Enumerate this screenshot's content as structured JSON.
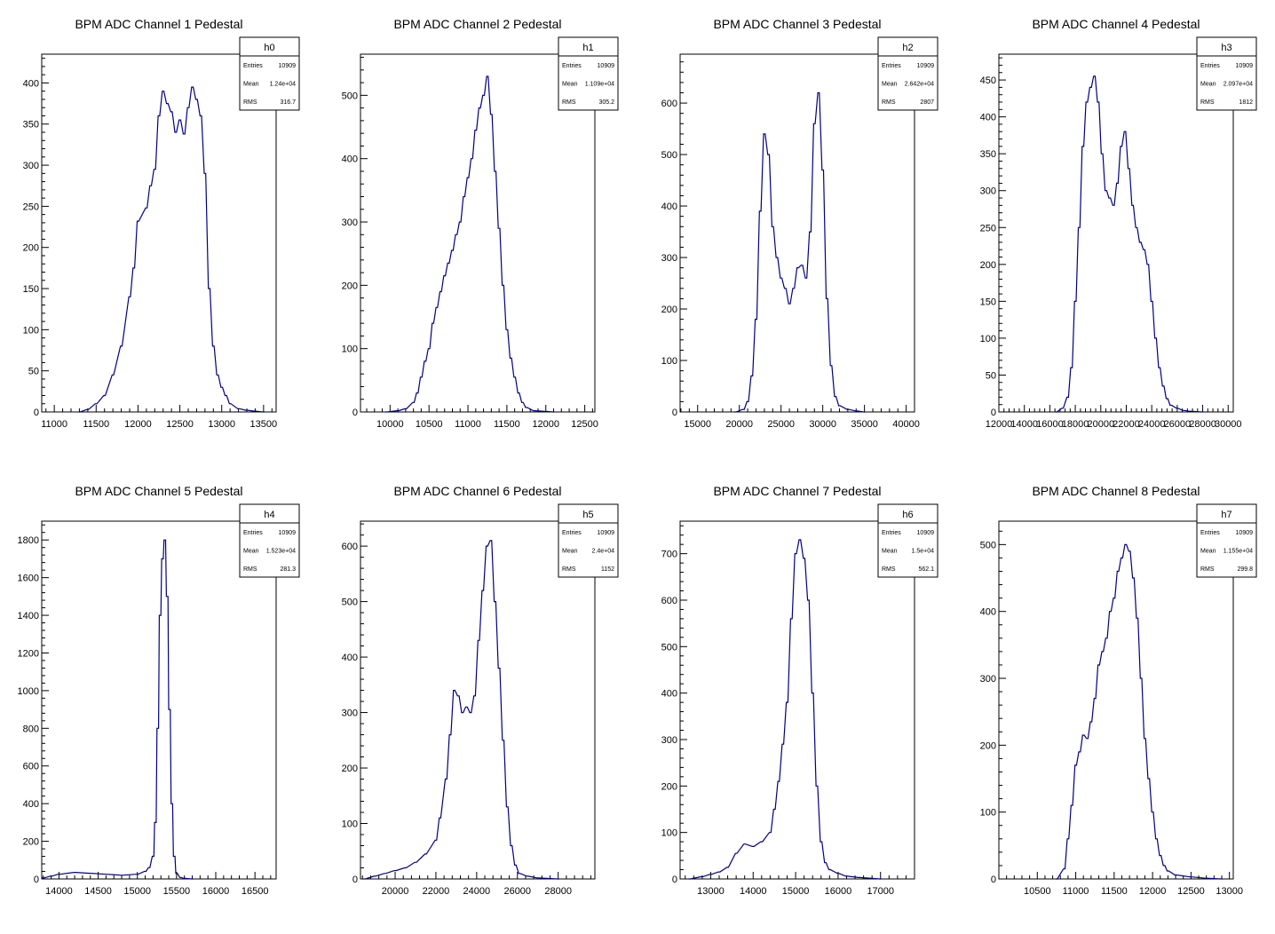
{
  "colors": {
    "histogram": "#000080",
    "frame": "#000000",
    "background": "#ffffff"
  },
  "chart_data": [
    {
      "type": "histogram",
      "title": "BPM ADC Channel 1 Pedestal",
      "stats": {
        "name": "h0",
        "entries": "10909",
        "mean": "1.24e+04",
        "rms": "316.7"
      },
      "xlim": [
        10850,
        13650
      ],
      "ylim": [
        0,
        435
      ],
      "xticks": [
        11000,
        11500,
        12000,
        12500,
        13000,
        13500
      ],
      "yticks": [
        0,
        50,
        100,
        150,
        200,
        250,
        300,
        350,
        400
      ],
      "points": [
        [
          11300,
          0
        ],
        [
          11400,
          3
        ],
        [
          11500,
          10
        ],
        [
          11600,
          20
        ],
        [
          11700,
          45
        ],
        [
          11800,
          80
        ],
        [
          11900,
          140
        ],
        [
          11950,
          175
        ],
        [
          12000,
          232
        ],
        [
          12100,
          248
        ],
        [
          12150,
          275
        ],
        [
          12200,
          295
        ],
        [
          12250,
          360
        ],
        [
          12300,
          390
        ],
        [
          12350,
          375
        ],
        [
          12400,
          365
        ],
        [
          12450,
          340
        ],
        [
          12500,
          355
        ],
        [
          12550,
          338
        ],
        [
          12600,
          370
        ],
        [
          12650,
          395
        ],
        [
          12700,
          380
        ],
        [
          12750,
          360
        ],
        [
          12800,
          290
        ],
        [
          12850,
          150
        ],
        [
          12900,
          80
        ],
        [
          12950,
          45
        ],
        [
          13000,
          30
        ],
        [
          13050,
          20
        ],
        [
          13100,
          10
        ],
        [
          13200,
          4
        ],
        [
          13300,
          2
        ],
        [
          13400,
          1
        ],
        [
          13500,
          0
        ]
      ]
    },
    {
      "type": "histogram",
      "title": "BPM ADC Channel 2 Pedestal",
      "stats": {
        "name": "h1",
        "entries": "10909",
        "mean": "1.109e+04",
        "rms": "305.2"
      },
      "xlim": [
        9620,
        12630
      ],
      "ylim": [
        0,
        565
      ],
      "xticks": [
        10000,
        10500,
        11000,
        11500,
        12000,
        12500
      ],
      "yticks": [
        0,
        100,
        200,
        300,
        400,
        500
      ],
      "points": [
        [
          9950,
          0
        ],
        [
          10100,
          2
        ],
        [
          10200,
          5
        ],
        [
          10300,
          15
        ],
        [
          10350,
          30
        ],
        [
          10400,
          55
        ],
        [
          10450,
          80
        ],
        [
          10500,
          100
        ],
        [
          10550,
          140
        ],
        [
          10600,
          165
        ],
        [
          10650,
          190
        ],
        [
          10700,
          215
        ],
        [
          10750,
          235
        ],
        [
          10800,
          255
        ],
        [
          10850,
          280
        ],
        [
          10900,
          300
        ],
        [
          10950,
          340
        ],
        [
          11000,
          370
        ],
        [
          11050,
          400
        ],
        [
          11100,
          445
        ],
        [
          11150,
          480
        ],
        [
          11200,
          500
        ],
        [
          11250,
          530
        ],
        [
          11300,
          470
        ],
        [
          11350,
          380
        ],
        [
          11400,
          290
        ],
        [
          11450,
          200
        ],
        [
          11500,
          130
        ],
        [
          11550,
          85
        ],
        [
          11600,
          55
        ],
        [
          11650,
          30
        ],
        [
          11700,
          15
        ],
        [
          11750,
          7
        ],
        [
          11850,
          2
        ],
        [
          12000,
          1
        ],
        [
          12100,
          0
        ]
      ]
    },
    {
      "type": "histogram",
      "title": "BPM ADC Channel 3 Pedestal",
      "stats": {
        "name": "h2",
        "entries": "10909",
        "mean": "2.642e+04",
        "rms": "2807"
      },
      "xlim": [
        12900,
        41000
      ],
      "ylim": [
        0,
        695
      ],
      "xticks": [
        15000,
        20000,
        25000,
        30000,
        35000,
        40000
      ],
      "yticks": [
        0,
        100,
        200,
        300,
        400,
        500,
        600
      ],
      "points": [
        [
          19500,
          0
        ],
        [
          20500,
          5
        ],
        [
          21000,
          20
        ],
        [
          21500,
          70
        ],
        [
          22000,
          180
        ],
        [
          22500,
          390
        ],
        [
          23000,
          540
        ],
        [
          23500,
          500
        ],
        [
          24000,
          360
        ],
        [
          24500,
          300
        ],
        [
          25000,
          260
        ],
        [
          25500,
          240
        ],
        [
          26000,
          210
        ],
        [
          26500,
          240
        ],
        [
          27000,
          280
        ],
        [
          27500,
          285
        ],
        [
          28000,
          260
        ],
        [
          28500,
          350
        ],
        [
          29000,
          560
        ],
        [
          29500,
          620
        ],
        [
          30000,
          470
        ],
        [
          30500,
          220
        ],
        [
          31000,
          90
        ],
        [
          31500,
          30
        ],
        [
          32000,
          12
        ],
        [
          33000,
          5
        ],
        [
          34000,
          2
        ],
        [
          35000,
          0
        ]
      ]
    },
    {
      "type": "histogram",
      "title": "BPM ADC Channel 4 Pedestal",
      "stats": {
        "name": "h3",
        "entries": "10909",
        "mean": "2.097e+04",
        "rms": "1812"
      },
      "xlim": [
        12000,
        30400
      ],
      "ylim": [
        0,
        485
      ],
      "xticks": [
        12000,
        14000,
        16000,
        18000,
        20000,
        22000,
        24000,
        26000,
        28000,
        30000
      ],
      "yticks": [
        0,
        50,
        100,
        150,
        200,
        250,
        300,
        350,
        400,
        450
      ],
      "points": [
        [
          16500,
          0
        ],
        [
          17000,
          5
        ],
        [
          17400,
          20
        ],
        [
          17700,
          60
        ],
        [
          18000,
          150
        ],
        [
          18300,
          250
        ],
        [
          18600,
          360
        ],
        [
          18900,
          420
        ],
        [
          19200,
          440
        ],
        [
          19500,
          455
        ],
        [
          19800,
          420
        ],
        [
          20100,
          350
        ],
        [
          20400,
          300
        ],
        [
          20700,
          290
        ],
        [
          21000,
          280
        ],
        [
          21300,
          310
        ],
        [
          21600,
          360
        ],
        [
          21900,
          380
        ],
        [
          22200,
          330
        ],
        [
          22500,
          280
        ],
        [
          22800,
          250
        ],
        [
          23100,
          230
        ],
        [
          23400,
          220
        ],
        [
          23700,
          200
        ],
        [
          24000,
          150
        ],
        [
          24300,
          100
        ],
        [
          24600,
          60
        ],
        [
          24900,
          35
        ],
        [
          25200,
          18
        ],
        [
          25500,
          9
        ],
        [
          26000,
          5
        ],
        [
          26500,
          2
        ],
        [
          27000,
          1
        ],
        [
          28000,
          0
        ]
      ]
    },
    {
      "type": "histogram",
      "title": "BPM ADC Channel 5 Pedestal",
      "stats": {
        "name": "h4",
        "entries": "10909",
        "mean": "1.523e+04",
        "rms": "281.3"
      },
      "xlim": [
        13780,
        16770
      ],
      "ylim": [
        0,
        1900
      ],
      "xticks": [
        14000,
        14500,
        15000,
        15500,
        16000,
        16500
      ],
      "yticks": [
        0,
        200,
        400,
        600,
        800,
        1000,
        1200,
        1400,
        1600,
        1800
      ],
      "points": [
        [
          13800,
          5
        ],
        [
          13900,
          15
        ],
        [
          14000,
          25
        ],
        [
          14200,
          35
        ],
        [
          14400,
          30
        ],
        [
          14600,
          25
        ],
        [
          14800,
          20
        ],
        [
          15000,
          25
        ],
        [
          15100,
          40
        ],
        [
          15150,
          60
        ],
        [
          15200,
          120
        ],
        [
          15230,
          300
        ],
        [
          15260,
          800
        ],
        [
          15290,
          1400
        ],
        [
          15320,
          1700
        ],
        [
          15350,
          1800
        ],
        [
          15380,
          1500
        ],
        [
          15410,
          900
        ],
        [
          15440,
          400
        ],
        [
          15470,
          120
        ],
        [
          15500,
          30
        ],
        [
          15550,
          8
        ],
        [
          15600,
          3
        ],
        [
          15700,
          0
        ]
      ]
    },
    {
      "type": "histogram",
      "title": "BPM ADC Channel 6 Pedestal",
      "stats": {
        "name": "h5",
        "entries": "10909",
        "mean": "2.4e+04",
        "rms": "1152"
      },
      "xlim": [
        18300,
        29800
      ],
      "ylim": [
        0,
        645
      ],
      "xticks": [
        20000,
        22000,
        24000,
        26000,
        28000
      ],
      "yticks": [
        0,
        100,
        200,
        300,
        400,
        500,
        600
      ],
      "points": [
        [
          18500,
          0
        ],
        [
          19000,
          5
        ],
        [
          19500,
          10
        ],
        [
          20000,
          15
        ],
        [
          20500,
          20
        ],
        [
          21000,
          30
        ],
        [
          21500,
          45
        ],
        [
          22000,
          70
        ],
        [
          22200,
          110
        ],
        [
          22500,
          180
        ],
        [
          22700,
          260
        ],
        [
          22900,
          340
        ],
        [
          23100,
          330
        ],
        [
          23300,
          300
        ],
        [
          23500,
          310
        ],
        [
          23700,
          300
        ],
        [
          23900,
          330
        ],
        [
          24100,
          430
        ],
        [
          24300,
          520
        ],
        [
          24500,
          600
        ],
        [
          24700,
          610
        ],
        [
          24900,
          500
        ],
        [
          25100,
          380
        ],
        [
          25300,
          250
        ],
        [
          25500,
          130
        ],
        [
          25700,
          60
        ],
        [
          25900,
          25
        ],
        [
          26100,
          10
        ],
        [
          26500,
          5
        ],
        [
          27000,
          2
        ],
        [
          28000,
          0
        ]
      ]
    },
    {
      "type": "histogram",
      "title": "BPM ADC Channel 7 Pedestal",
      "stats": {
        "name": "h6",
        "entries": "10909",
        "mean": "1.5e+04",
        "rms": "562.1"
      },
      "xlim": [
        12280,
        17800
      ],
      "ylim": [
        0,
        770
      ],
      "xticks": [
        13000,
        14000,
        15000,
        16000,
        17000
      ],
      "yticks": [
        0,
        100,
        200,
        300,
        400,
        500,
        600,
        700
      ],
      "points": [
        [
          12500,
          0
        ],
        [
          12800,
          5
        ],
        [
          13000,
          10
        ],
        [
          13200,
          15
        ],
        [
          13400,
          25
        ],
        [
          13600,
          55
        ],
        [
          13800,
          75
        ],
        [
          14000,
          70
        ],
        [
          14200,
          80
        ],
        [
          14400,
          100
        ],
        [
          14500,
          150
        ],
        [
          14600,
          210
        ],
        [
          14700,
          290
        ],
        [
          14800,
          380
        ],
        [
          14900,
          560
        ],
        [
          15000,
          700
        ],
        [
          15100,
          730
        ],
        [
          15200,
          690
        ],
        [
          15300,
          600
        ],
        [
          15400,
          400
        ],
        [
          15500,
          200
        ],
        [
          15600,
          80
        ],
        [
          15700,
          35
        ],
        [
          15800,
          20
        ],
        [
          16000,
          12
        ],
        [
          16200,
          6
        ],
        [
          16500,
          3
        ],
        [
          17000,
          0
        ]
      ]
    },
    {
      "type": "histogram",
      "title": "BPM ADC Channel 8 Pedestal",
      "stats": {
        "name": "h7",
        "entries": "10909",
        "mean": "1.155e+04",
        "rms": "299.8"
      },
      "xlim": [
        10000,
        13050
      ],
      "ylim": [
        0,
        535
      ],
      "xticks": [
        10500,
        11000,
        11500,
        12000,
        12500,
        13000
      ],
      "yticks": [
        0,
        100,
        200,
        300,
        400,
        500
      ],
      "points": [
        [
          10750,
          0
        ],
        [
          10850,
          15
        ],
        [
          10900,
          60
        ],
        [
          10950,
          110
        ],
        [
          11000,
          170
        ],
        [
          11050,
          190
        ],
        [
          11100,
          215
        ],
        [
          11150,
          210
        ],
        [
          11200,
          235
        ],
        [
          11250,
          270
        ],
        [
          11300,
          320
        ],
        [
          11350,
          340
        ],
        [
          11400,
          360
        ],
        [
          11450,
          400
        ],
        [
          11500,
          420
        ],
        [
          11550,
          460
        ],
        [
          11600,
          480
        ],
        [
          11650,
          500
        ],
        [
          11700,
          490
        ],
        [
          11750,
          450
        ],
        [
          11800,
          390
        ],
        [
          11850,
          300
        ],
        [
          11900,
          210
        ],
        [
          11950,
          150
        ],
        [
          12000,
          100
        ],
        [
          12050,
          60
        ],
        [
          12100,
          35
        ],
        [
          12150,
          20
        ],
        [
          12200,
          12
        ],
        [
          12300,
          6
        ],
        [
          12500,
          3
        ],
        [
          12700,
          1
        ],
        [
          12900,
          0
        ]
      ]
    }
  ]
}
